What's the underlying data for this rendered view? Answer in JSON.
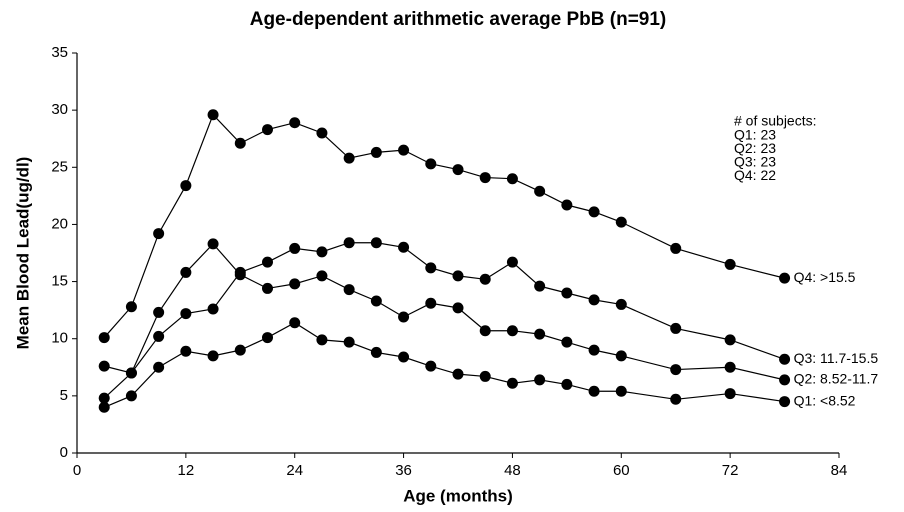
{
  "chart_data": {
    "type": "line",
    "title": "Age-dependent arithmetic average PbB (n=91)",
    "x_label": "Age (months)",
    "y_label": "Mean Blood Lead(ug/dl)",
    "x": [
      3,
      6,
      9,
      12,
      15,
      18,
      21,
      24,
      27,
      30,
      33,
      36,
      39,
      42,
      45,
      48,
      51,
      54,
      57,
      60,
      66,
      72,
      78
    ],
    "series": [
      {
        "name": "Q4: >15.5",
        "color": "#000000",
        "values": [
          10.1,
          12.8,
          19.2,
          23.4,
          29.6,
          27.1,
          28.3,
          28.9,
          28.0,
          25.8,
          26.3,
          26.5,
          25.3,
          24.8,
          24.1,
          24.0,
          22.9,
          21.7,
          21.1,
          20.2,
          17.9,
          16.5,
          15.3
        ]
      },
      {
        "name": "Q3: 11.7-15.5",
        "color": "#000000",
        "values": [
          4.8,
          7.0,
          10.2,
          12.2,
          12.6,
          15.8,
          16.7,
          17.9,
          17.6,
          18.4,
          18.4,
          18.0,
          16.2,
          15.5,
          15.2,
          16.7,
          14.6,
          14.0,
          13.4,
          13.0,
          10.9,
          9.9,
          8.2
        ]
      },
      {
        "name": "Q2: 8.52-11.7",
        "color": "#000000",
        "values": [
          7.6,
          7.0,
          12.3,
          15.8,
          18.3,
          15.6,
          14.4,
          14.8,
          15.5,
          14.3,
          13.3,
          11.9,
          13.1,
          12.7,
          10.7,
          10.7,
          10.4,
          9.7,
          9.0,
          8.5,
          7.3,
          7.5,
          6.4
        ]
      },
      {
        "name": "Q1: <8.52",
        "color": "#000000",
        "values": [
          4.0,
          5.0,
          7.5,
          8.9,
          8.5,
          9.0,
          10.1,
          11.4,
          9.9,
          9.7,
          8.8,
          8.4,
          7.6,
          6.9,
          6.7,
          6.1,
          6.4,
          6.0,
          5.4,
          5.4,
          4.7,
          5.2,
          4.5
        ]
      }
    ],
    "xlim": [
      0,
      84
    ],
    "xticks": [
      0,
      12,
      24,
      36,
      48,
      60,
      72,
      84
    ],
    "ylim": [
      0,
      35
    ],
    "yticks": [
      0,
      5,
      10,
      15,
      20,
      25,
      30,
      35
    ],
    "annotations": [
      "# of subjects:",
      "Q1: 23",
      "Q2: 23",
      "Q3: 23",
      "Q4: 22"
    ]
  }
}
